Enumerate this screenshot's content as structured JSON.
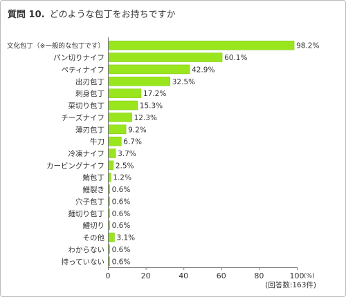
{
  "question": {
    "number": "質問 10.",
    "text": "どのような包丁をお持ちですか"
  },
  "colors": {
    "bar": "#99e61f",
    "bar_edge": "#7fc414",
    "axis": "#7a7a7a",
    "grid": "#e2e2e2",
    "text": "#333333"
  },
  "chart_data": {
    "type": "bar",
    "orientation": "horizontal",
    "title": "",
    "xlabel": "",
    "ylabel": "",
    "unit_label": "(%)",
    "note": "(回答数:163件)",
    "xlim": [
      0,
      100
    ],
    "xticks": [
      "0",
      "20",
      "40",
      "60",
      "80",
      "100"
    ],
    "grid": false,
    "categories": [
      "文化包丁（※一般的な包丁です）",
      "パン切りナイフ",
      "ペティナイフ",
      "出刃包丁",
      "刺身包丁",
      "菜切り包丁",
      "チーズナイフ",
      "薄刃包丁",
      "牛刀",
      "冷凍ナイフ",
      "カービングナイフ",
      "鮪包丁",
      "鰻裂き",
      "穴子包丁",
      "麺切り包丁",
      "鱧切り",
      "その他",
      "わからない",
      "持っていない"
    ],
    "values": [
      98.2,
      60.1,
      42.9,
      32.5,
      17.2,
      15.3,
      12.3,
      9.2,
      6.7,
      3.7,
      2.5,
      1.2,
      0.6,
      0.6,
      0.6,
      0.6,
      3.1,
      0.6,
      0.6
    ],
    "value_labels": [
      "98.2%",
      "60.1%",
      "42.9%",
      "32.5%",
      "17.2%",
      "15.3%",
      "12.3%",
      "9.2%",
      "6.7%",
      "3.7%",
      "2.5%",
      "1.2%",
      "0.6%",
      "0.6%",
      "0.6%",
      "0.6%",
      "3.1%",
      "0.6%",
      "0.6%"
    ]
  }
}
